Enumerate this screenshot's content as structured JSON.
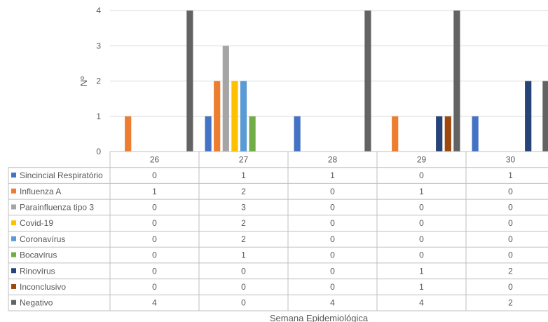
{
  "chart_data": {
    "type": "bar",
    "ylabel": "Nº",
    "xlabel": "Semana Epidemiológica",
    "ylim": [
      0,
      4
    ],
    "yticks": [
      "0",
      "1",
      "2",
      "3",
      "4"
    ],
    "grid": true,
    "legend": "data-table",
    "categories": [
      "26",
      "27",
      "28",
      "29",
      "30"
    ],
    "series": [
      {
        "name": "Sincincial Respiratório",
        "color": "#4472c4",
        "values": [
          0,
          1,
          1,
          0,
          1
        ]
      },
      {
        "name": "Influenza A",
        "color": "#ed7d31",
        "values": [
          1,
          2,
          0,
          1,
          0
        ]
      },
      {
        "name": "Parainfluenza tipo 3",
        "color": "#a5a5a5",
        "values": [
          0,
          3,
          0,
          0,
          0
        ]
      },
      {
        "name": "Covid-19",
        "color": "#ffc000",
        "values": [
          0,
          2,
          0,
          0,
          0
        ]
      },
      {
        "name": "Coronavírus",
        "color": "#5b9bd5",
        "values": [
          0,
          2,
          0,
          0,
          0
        ]
      },
      {
        "name": "Bocavírus",
        "color": "#70ad47",
        "values": [
          0,
          1,
          0,
          0,
          0
        ]
      },
      {
        "name": "Rinovírus",
        "color": "#264478",
        "values": [
          0,
          0,
          0,
          1,
          2
        ]
      },
      {
        "name": "Inconclusivo",
        "color": "#9e480e",
        "values": [
          0,
          0,
          0,
          1,
          0
        ]
      },
      {
        "name": "Negativo",
        "color": "#636363",
        "values": [
          4,
          0,
          4,
          4,
          2
        ]
      }
    ]
  }
}
